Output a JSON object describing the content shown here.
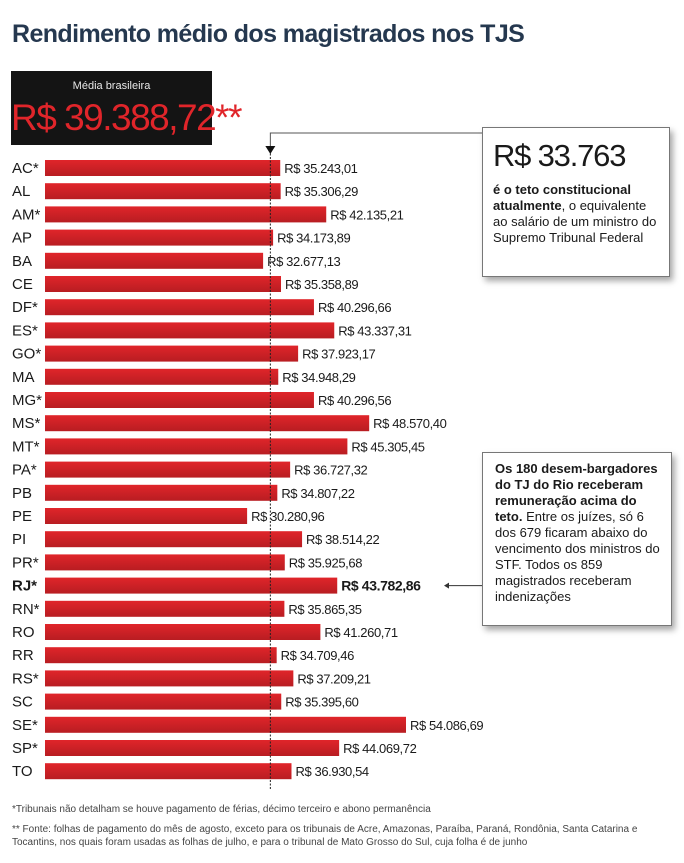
{
  "title": "Rendimento médio dos magistrados nos TJS",
  "average": {
    "label": "Média brasileira",
    "value": "R$ 39.388,72**"
  },
  "teto": {
    "value": "R$ 33.763",
    "text_bold": "é o teto constitucional atualmente",
    "text_rest": ", o equivalente ao salário de um ministro do Supremo Tribunal Federal"
  },
  "rio_note": {
    "text_bold": "Os 180 desem-bargadores do TJ do Rio receberam remuneração acima do teto.",
    "text_rest": " Entre os juízes, só 6 dos 679 ficaram abaixo do vencimento dos ministros do STF. Todos os 859 magistrados receberam indenizações"
  },
  "footnotes": [
    "*Tribunais não detalham se houve pagamento de férias, décimo terceiro e abono permanência",
    "** Fonte: folhas de pagamento do mês de agosto, exceto para os tribunais de Acre, Amazonas, Paraíba, Paraná, Rondônia, Santa Catarina e Tocantins, nos quais foram usadas as folhas de julho, e para o tribunal de Mato Grosso do Sul, cuja folha é de junho"
  ],
  "colors": {
    "bar": "#e0252a",
    "bar_dark": "#b81d22",
    "title": "#25384f",
    "avg_box": "#141414"
  },
  "chart_data": {
    "type": "bar",
    "orientation": "horizontal",
    "reference_line": 33763,
    "highlight": "RJ*",
    "categories": [
      "AC*",
      "AL",
      "AM*",
      "AP",
      "BA",
      "CE",
      "DF*",
      "ES*",
      "GO*",
      "MA",
      "MG*",
      "MS*",
      "MT*",
      "PA*",
      "PB",
      "PE",
      "PI",
      "PR*",
      "RJ*",
      "RN*",
      "RO",
      "RR",
      "RS*",
      "SC",
      "SE*",
      "SP*",
      "TO"
    ],
    "values": [
      35243.01,
      35306.29,
      42135.21,
      34173.89,
      32677.13,
      35358.89,
      40296.66,
      43337.31,
      37923.17,
      34948.29,
      40296.56,
      48570.4,
      45305.45,
      36727.32,
      34807.22,
      30280.96,
      38514.22,
      35925.68,
      43782.86,
      35865.35,
      41260.71,
      34709.46,
      37209.21,
      35395.6,
      54086.69,
      44069.72,
      36930.54
    ],
    "value_labels": [
      "R$ 35.243,01",
      "R$ 35.306,29",
      "R$ 42.135,21",
      "R$ 34.173,89",
      "R$ 32.677,13",
      "R$ 35.358,89",
      "R$ 40.296,66",
      "R$ 43.337,31",
      "R$ 37.923,17",
      "R$ 34.948,29",
      "R$ 40.296,56",
      "R$ 48.570,40",
      "R$ 45.305,45",
      "R$ 36.727,32",
      "R$ 34.807,22",
      "R$ 30.280,96",
      "R$ 38.514,22",
      "R$ 35.925,68",
      "R$ 43.782,86",
      "R$ 35.865,35",
      "R$ 41.260,71",
      "R$ 34.709,46",
      "R$ 37.209,21",
      "R$ 35.395,60",
      "R$ 54.086,69",
      "R$ 44.069,72",
      "R$ 36.930,54"
    ]
  }
}
